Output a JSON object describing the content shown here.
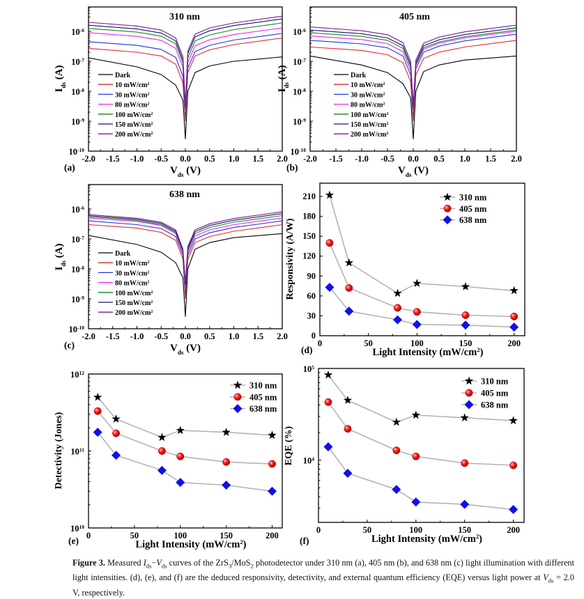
{
  "colors": {
    "Dark": "#000000",
    "10": "#e3262b",
    "30": "#2233e6",
    "80": "#f022f0",
    "100": "#128a12",
    "150": "#141478",
    "200": "#7d1a88",
    "line": "#b4b4b4",
    "s310": "#000000",
    "s405": "#e01010",
    "s638": "#1010e8"
  },
  "chart_data": [
    {
      "id": "a",
      "type": "line",
      "panel_label": "(a)",
      "title": "310 nm",
      "xlabel": {
        "main": "V",
        "sub": "ds",
        "unit": " (V)"
      },
      "ylabel": {
        "main": "I",
        "sub": "ds",
        "unit": " (A)"
      },
      "yscale": "log",
      "xlim": [
        -2,
        2
      ],
      "ylim": [
        1e-10,
        6.5e-06
      ],
      "xticks": [
        "-2.0",
        "-1.5",
        "-1.0",
        "-0.5",
        "0.0",
        "0.5",
        "1.0",
        "1.5",
        "2.0"
      ],
      "yticks": [
        -10,
        -9,
        -8,
        -7,
        -6
      ],
      "x": [
        -2,
        -1,
        -0.5,
        -0.2,
        -0.05,
        0,
        0.05,
        0.2,
        0.5,
        1,
        2
      ],
      "legend": [
        "Dark",
        "10 mW/cm",
        "30 mW/cm",
        "80 mW/cm",
        "100 mW/cm",
        "150 mW/cm",
        "200 mW/cm"
      ],
      "legend_sup": "2",
      "series": [
        {
          "name": "Dark",
          "key": "Dark",
          "values": [
            1.3e-07,
            6.5e-08,
            3.6e-08,
            1.6e-08,
            5e-09,
            2.5e-10,
            1e-08,
            4.2e-08,
            7e-08,
            1e-07,
            1.4e-07
          ]
        },
        {
          "name": "10 mW/cm2",
          "key": "10",
          "values": [
            2.7e-07,
            2e-07,
            1.5e-07,
            8e-08,
            1.9e-08,
            1e-09,
            4.2e-08,
            1.5e-07,
            2.4e-07,
            3.6e-07,
            6e-07
          ]
        },
        {
          "name": "30 mW/cm2",
          "key": "30",
          "values": [
            4.5e-07,
            3.4e-07,
            2.5e-07,
            1.35e-07,
            3.2e-08,
            1.5e-09,
            6e-08,
            2.1e-07,
            3.4e-07,
            5.1e-07,
            8.5e-07
          ]
        },
        {
          "name": "80 mW/cm2",
          "key": "80",
          "values": [
            9e-07,
            6.8e-07,
            5e-07,
            2.7e-07,
            6.3e-08,
            2e-09,
            9e-08,
            3.3e-07,
            5.2e-07,
            7.8e-07,
            1.3e-06
          ]
        },
        {
          "name": "100 mW/cm2",
          "key": "100",
          "values": [
            1.25e-06,
            9.4e-07,
            6.9e-07,
            3.8e-07,
            8.8e-08,
            2.5e-09,
            1.3e-07,
            4.8e-07,
            7.6e-07,
            1.14e-06,
            1.9e-06
          ]
        },
        {
          "name": "150 mW/cm2",
          "key": "150",
          "values": [
            1.6e-06,
            1.2e-06,
            8.8e-07,
            4.8e-07,
            1.1e-07,
            3e-09,
            1.8e-07,
            6.5e-07,
            1.04e-06,
            1.56e-06,
            2.6e-06
          ]
        },
        {
          "name": "200 mW/cm2",
          "key": "200",
          "values": [
            2e-06,
            1.5e-06,
            1.1e-06,
            6e-07,
            1.4e-07,
            3.5e-09,
            2.2e-07,
            8e-07,
            1.3e-06,
            1.9e-06,
            3.2e-06
          ]
        }
      ]
    },
    {
      "id": "b",
      "type": "line",
      "panel_label": "(b)",
      "title": "405 nm",
      "xlabel": {
        "main": "V",
        "sub": "ds",
        "unit": " (V)"
      },
      "ylabel": {
        "main": "I",
        "sub": "ds",
        "unit": " (A)"
      },
      "yscale": "log",
      "xlim": [
        -2,
        2
      ],
      "ylim": [
        1e-10,
        6.5e-06
      ],
      "xticks": [
        "-2.0",
        "-1.5",
        "-1.0",
        "-0.5",
        "0.0",
        "0.5",
        "1.0",
        "1.5",
        "2.0"
      ],
      "yticks": [
        -10,
        -9,
        -8,
        -7,
        -6
      ],
      "x": [
        -2,
        -1,
        -0.5,
        -0.2,
        -0.05,
        0,
        0.05,
        0.2,
        0.5,
        1,
        2
      ],
      "legend": [
        "Dark",
        "10 mW/cm",
        "30 mW/cm",
        "80 mW/cm",
        "100 mW/cm",
        "150 mW/cm",
        "200 mW/cm"
      ],
      "legend_sup": "2",
      "series": [
        {
          "name": "Dark",
          "key": "Dark",
          "values": [
            1.5e-07,
            7.5e-08,
            4.2e-08,
            1.8e-08,
            6e-09,
            2.5e-10,
            1e-08,
            4.5e-08,
            7.5e-08,
            1.1e-07,
            1.5e-07
          ]
        },
        {
          "name": "10 mW/cm2",
          "key": "10",
          "values": [
            3e-07,
            2.3e-07,
            1.65e-07,
            9e-08,
            2.1e-08,
            1e-09,
            3.5e-08,
            1.25e-07,
            2e-07,
            3e-07,
            5e-07
          ]
        },
        {
          "name": "30 mW/cm2",
          "key": "30",
          "values": [
            5e-07,
            3.8e-07,
            2.8e-07,
            1.5e-07,
            3.5e-08,
            1.5e-09,
            5.6e-08,
            2e-07,
            3.2e-07,
            4.8e-07,
            8e-07
          ]
        },
        {
          "name": "80 mW/cm2",
          "key": "80",
          "values": [
            7e-07,
            5.3e-07,
            3.9e-07,
            2.1e-07,
            4.9e-08,
            2e-09,
            7e-08,
            2.5e-07,
            4e-07,
            6e-07,
            1e-06
          ]
        },
        {
          "name": "100 mW/cm2",
          "key": "100",
          "values": [
            9e-07,
            6.8e-07,
            5e-07,
            2.7e-07,
            6.3e-08,
            2.5e-09,
            7.7e-08,
            2.8e-07,
            4.4e-07,
            6.6e-07,
            1.1e-06
          ]
        },
        {
          "name": "150 mW/cm2",
          "key": "150",
          "values": [
            1.1e-06,
            8.3e-07,
            6e-07,
            3.3e-07,
            7.7e-08,
            3e-09,
            9e-08,
            3.3e-07,
            5.2e-07,
            7.8e-07,
            1.3e-06
          ]
        },
        {
          "name": "200 mW/cm2",
          "key": "200",
          "values": [
            1.4e-06,
            1.05e-06,
            7.7e-07,
            4.2e-07,
            9.8e-08,
            3.5e-09,
            1.1e-07,
            4e-07,
            6.4e-07,
            9.6e-07,
            1.6e-06
          ]
        }
      ]
    },
    {
      "id": "c",
      "type": "line",
      "panel_label": "(c)",
      "title": "638 nm",
      "xlabel": {
        "main": "V",
        "sub": "ds",
        "unit": " (V)"
      },
      "ylabel": {
        "main": "I",
        "sub": "ds",
        "unit": " (A)"
      },
      "yscale": "log",
      "xlim": [
        -2,
        2
      ],
      "ylim": [
        1e-10,
        6.5e-06
      ],
      "xticks": [
        "-2.0",
        "-1.5",
        "-1.0",
        "-0.5",
        "0.0",
        "0.5",
        "1.0",
        "1.5",
        "2.0"
      ],
      "yticks": [
        -10,
        -9,
        -8,
        -7,
        -6
      ],
      "x": [
        -2,
        -1,
        -0.5,
        -0.2,
        -0.05,
        0,
        0.05,
        0.2,
        0.5,
        1,
        2
      ],
      "legend": [
        "Dark",
        "10 mW/cm",
        "30 mW/cm",
        "80 mW/cm",
        "100 mW/cm",
        "150 mW/cm",
        "200 mW/cm"
      ],
      "legend_sup": "2",
      "series": [
        {
          "name": "Dark",
          "key": "Dark",
          "values": [
            1.3e-07,
            6.5e-08,
            3.6e-08,
            1.6e-08,
            5e-09,
            2.5e-10,
            1e-08,
            4.5e-08,
            7.5e-08,
            1.1e-07,
            1.5e-07
          ]
        },
        {
          "name": "10 mW/cm2",
          "key": "10",
          "values": [
            3e-07,
            2.3e-07,
            1.65e-07,
            9e-08,
            2.1e-08,
            1e-09,
            2.1e-08,
            7.5e-08,
            1.2e-07,
            1.8e-07,
            3e-07
          ]
        },
        {
          "name": "30 mW/cm2",
          "key": "30",
          "values": [
            4e-07,
            3e-07,
            2.2e-07,
            1.2e-07,
            2.8e-08,
            1.5e-09,
            2.8e-08,
            1e-07,
            1.6e-07,
            2.4e-07,
            4e-07
          ]
        },
        {
          "name": "80 mW/cm2",
          "key": "80",
          "values": [
            5e-07,
            3.8e-07,
            2.8e-07,
            1.5e-07,
            3.5e-08,
            2e-09,
            3.5e-08,
            1.25e-07,
            2e-07,
            3e-07,
            5e-07
          ]
        },
        {
          "name": "100 mW/cm2",
          "key": "100",
          "values": [
            5.5e-07,
            4.1e-07,
            3e-07,
            1.65e-07,
            3.9e-08,
            2.5e-09,
            4.2e-08,
            1.5e-07,
            2.4e-07,
            3.6e-07,
            6e-07
          ]
        },
        {
          "name": "150 mW/cm2",
          "key": "150",
          "values": [
            6e-07,
            4.5e-07,
            3.3e-07,
            1.8e-07,
            4.2e-08,
            3e-09,
            4.9e-08,
            1.75e-07,
            2.8e-07,
            4.2e-07,
            7e-07
          ]
        },
        {
          "name": "200 mW/cm2",
          "key": "200",
          "values": [
            6.5e-07,
            4.9e-07,
            3.6e-07,
            2e-07,
            4.6e-08,
            3.5e-09,
            5.6e-08,
            2e-07,
            3.2e-07,
            4.8e-07,
            8e-07
          ]
        }
      ]
    },
    {
      "id": "d",
      "type": "line",
      "panel_label": "(d)",
      "title": "",
      "xlabel": {
        "main": "Light Intensity (mW/cm",
        "sup": "2",
        "end": ")"
      },
      "ylabel": {
        "main": "Responsivity (A/W)"
      },
      "yscale": "linear",
      "xlim": [
        0,
        211
      ],
      "ylim": [
        0,
        230
      ],
      "xticks": [
        0,
        50,
        100,
        150,
        200
      ],
      "yticks": [
        0,
        30,
        60,
        90,
        120,
        150,
        180,
        210
      ],
      "x": [
        10,
        30,
        80,
        100,
        150,
        200
      ],
      "legend": [
        "310 nm",
        "405 nm",
        "638 nm"
      ],
      "series": [
        {
          "name": "310 nm",
          "marker": "star",
          "values": [
            212,
            110,
            64,
            79,
            74,
            68
          ]
        },
        {
          "name": "405 nm",
          "marker": "circle",
          "values": [
            140,
            72,
            42,
            36,
            31,
            29
          ]
        },
        {
          "name": "638 nm",
          "marker": "diamond",
          "values": [
            73,
            37,
            24,
            17,
            16,
            13
          ]
        }
      ]
    },
    {
      "id": "e",
      "type": "line",
      "panel_label": "(e)",
      "title": "",
      "xlabel": {
        "main": "Light Intensity (mW/cm",
        "sup": "2",
        "end": ")"
      },
      "ylabel": {
        "main": "Detectivity (Jones)"
      },
      "yscale": "log",
      "xlim": [
        0,
        211
      ],
      "ylim": [
        10000000000.0,
        1000000000000.0
      ],
      "xticks": [
        0,
        50,
        100,
        150,
        200
      ],
      "yticks": [
        10,
        11,
        12
      ],
      "x": [
        10,
        30,
        80,
        100,
        150,
        200
      ],
      "legend": [
        "310 nm",
        "405 nm",
        "638 nm"
      ],
      "series": [
        {
          "name": "310 nm",
          "marker": "star",
          "values": [
            500000000000.0,
            260000000000.0,
            150000000000.0,
            185000000000.0,
            175000000000.0,
            160000000000.0
          ]
        },
        {
          "name": "405 nm",
          "marker": "circle",
          "values": [
            330000000000.0,
            170000000000.0,
            100000000000.0,
            85000000000.0,
            72000000000.0,
            68000000000.0
          ]
        },
        {
          "name": "638 nm",
          "marker": "diamond",
          "values": [
            175000000000.0,
            88000000000.0,
            56000000000.0,
            39000000000.0,
            36000000000.0,
            30000000000.0
          ]
        }
      ]
    },
    {
      "id": "f",
      "type": "line",
      "panel_label": "(f)",
      "title": "",
      "xlabel": {
        "main": "Light Intensity (mW/cm",
        "sup": "2",
        "end": ")"
      },
      "ylabel": {
        "main": "EQE (%)"
      },
      "yscale": "log",
      "xlim": [
        0,
        211
      ],
      "ylim": [
        2100,
        100000
      ],
      "xticks": [
        0,
        50,
        100,
        150,
        200
      ],
      "yticks": [
        4,
        5
      ],
      "x": [
        10,
        30,
        80,
        100,
        150,
        200
      ],
      "legend": [
        "310 nm",
        "405 nm",
        "638 nm"
      ],
      "series": [
        {
          "name": "310 nm",
          "marker": "star",
          "values": [
            85000,
            45000,
            26000,
            31000,
            29000,
            27000
          ]
        },
        {
          "name": "405 nm",
          "marker": "circle",
          "values": [
            43000,
            22000,
            12800,
            11000,
            9300,
            8800
          ]
        },
        {
          "name": "638 nm",
          "marker": "diamond",
          "values": [
            14000,
            7200,
            4800,
            3500,
            3300,
            2900
          ]
        }
      ]
    }
  ],
  "caption": [
    {
      "t": "Figure 3.",
      "b": true
    },
    {
      "t": " Measured "
    },
    {
      "t": "I",
      "i": true
    },
    {
      "t": "ds",
      "sub": true
    },
    {
      "t": "−"
    },
    {
      "t": "V",
      "i": true
    },
    {
      "t": "ds",
      "sub": true
    },
    {
      "t": " curves of the ZrS"
    },
    {
      "t": "3",
      "sub": true
    },
    {
      "t": "/MoS"
    },
    {
      "t": "2",
      "sub": true
    },
    {
      "t": " photodetector under 310 nm (a), 405 nm (b), and 638 nm (c) light illumination with different light intensities. (d), (e), and (f) are the deduced responsivity, detectivity, and external quantum efficiency (EQE) versus light power at "
    },
    {
      "t": "V",
      "i": true
    },
    {
      "t": "ds",
      "sub": true
    },
    {
      "t": " = 2.0 V, respectively."
    }
  ]
}
